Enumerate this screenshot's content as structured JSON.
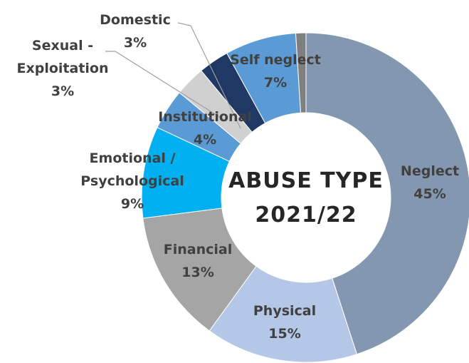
{
  "chart_data": {
    "type": "donut",
    "title": "ABUSE TYPE\n2021/22",
    "categories": [
      "Neglect",
      "Physical",
      "Financial",
      "Emotional /\nPsychological",
      "Institutional",
      "Sexual  -\nExploitation",
      "Domestic",
      "Self neglect",
      null
    ],
    "values": [
      45,
      15,
      13,
      9,
      4,
      3,
      3,
      7,
      1
    ],
    "value_labels": [
      "45%",
      "15%",
      "13%",
      "9%",
      "4%",
      "3%",
      "3%",
      "7%",
      null
    ],
    "colors": [
      "#8497b0",
      "#b4c7e7",
      "#a5a5a5",
      "#00b0f0",
      "#5b9bd5",
      "#d0d0d0",
      "#203864",
      "#5b9bd5",
      "#7f7f7f"
    ]
  }
}
